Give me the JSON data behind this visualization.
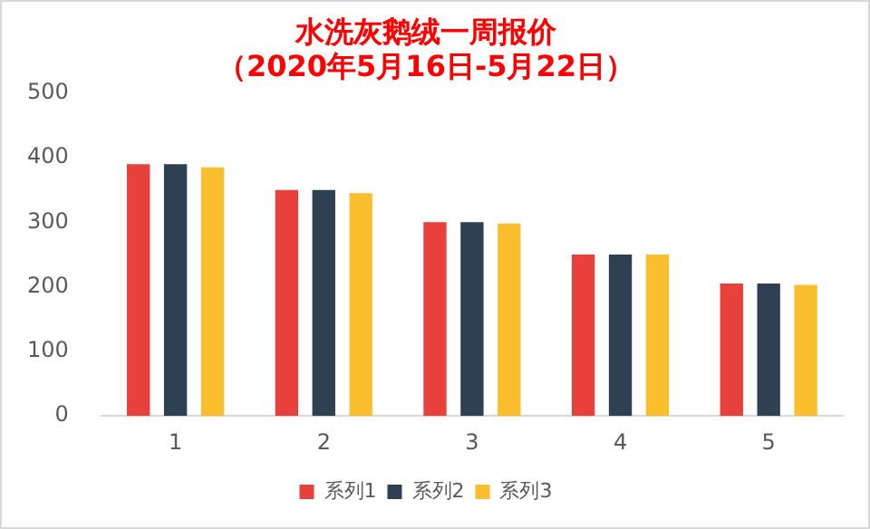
{
  "chart_data": {
    "type": "bar",
    "title": "水洗灰鹅绒一周报价",
    "subtitle": "（2020年5月16日-5月22日）",
    "categories": [
      "1",
      "2",
      "3",
      "4",
      "5"
    ],
    "series": [
      {
        "name": "系列1",
        "color": "#e8403a",
        "values": [
          390,
          350,
          300,
          250,
          205
        ]
      },
      {
        "name": "系列2",
        "color": "#2e4152",
        "values": [
          390,
          350,
          300,
          250,
          205
        ]
      },
      {
        "name": "系列3",
        "color": "#fbbf2d",
        "values": [
          385,
          345,
          298,
          250,
          203
        ]
      }
    ],
    "ylim": [
      0,
      500
    ],
    "yticks": [
      0,
      100,
      200,
      300,
      400,
      500
    ],
    "grid": false,
    "legend": "bottom"
  }
}
